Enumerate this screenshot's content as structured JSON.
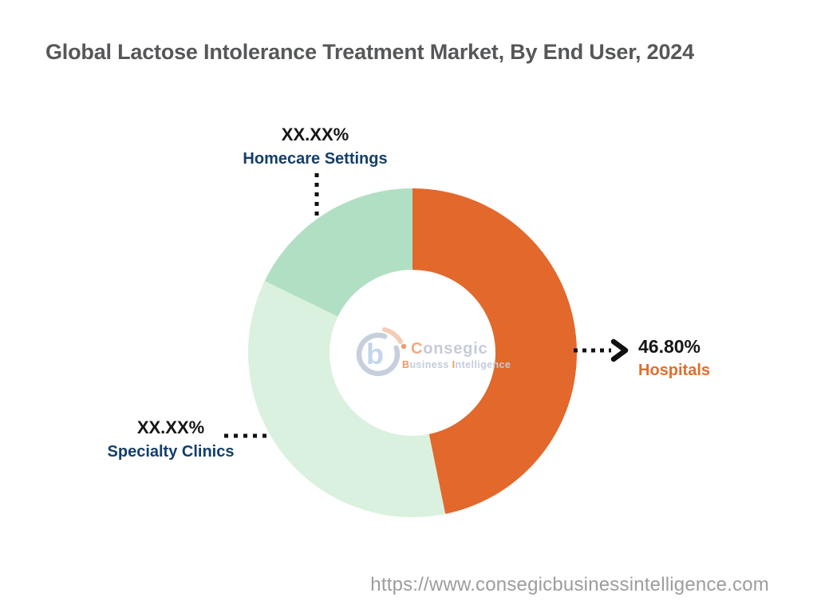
{
  "title": "Global Lactose Intolerance Treatment Market, By End User, 2024",
  "chart_data": {
    "type": "pie",
    "subtype": "donut",
    "title": "Global Lactose Intolerance Treatment Market, By End User, 2024",
    "direction": "clockwise",
    "start_angle_deg_from_top": 0,
    "inner_radius_ratio": 0.5,
    "legend_position": "callout-labels",
    "segments": [
      {
        "label": "Hospitals",
        "display_value": "46.80%",
        "value_pct": 46.8,
        "color": "#E2682B",
        "label_color": "#DF6E2D"
      },
      {
        "label": "Specialty Clinics",
        "display_value": "XX.XX%",
        "value_pct": 35.4,
        "color": "#D9F1DE",
        "label_color": "#133F6B"
      },
      {
        "label": "Homecare Settings",
        "display_value": "XX.XX%",
        "value_pct": 17.8,
        "color": "#B1DFC3",
        "label_color": "#133F6B"
      }
    ],
    "value_text_color": "#161616",
    "callout_line_color": "#111111"
  },
  "logo": {
    "letter_mark": "b",
    "brand_first": "C",
    "brand_rest": "onsegic",
    "tagline_b": "B",
    "tagline_usiness": "usiness ",
    "tagline_i": "I",
    "tagline_rest": "ntelligence"
  },
  "footer": {
    "url": "https://www.consegicbusinessintelligence.com"
  }
}
